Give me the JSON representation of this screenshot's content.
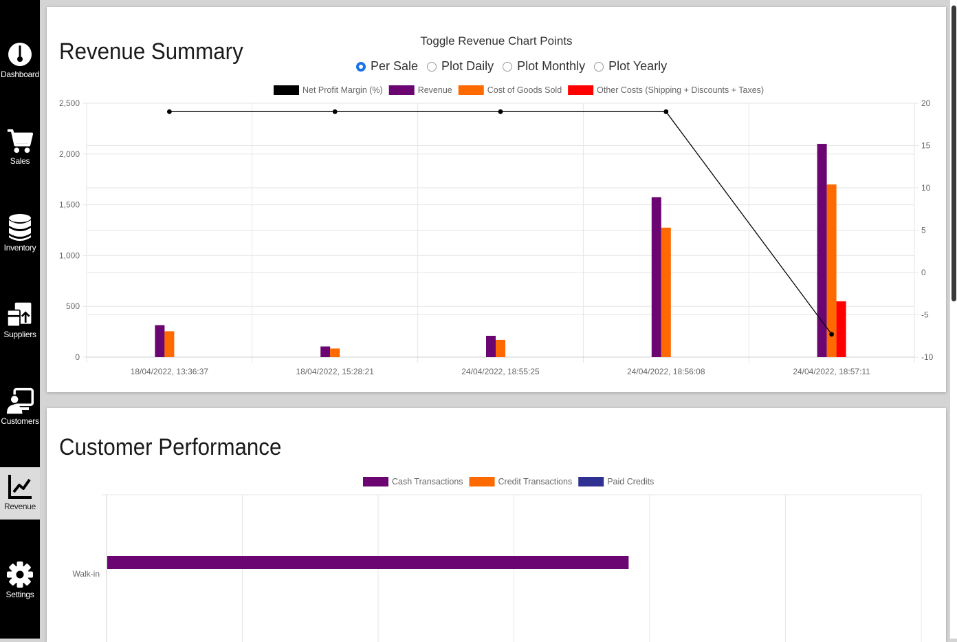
{
  "nav": [
    {
      "label": "Dashboard",
      "icon": "thermometer-icon",
      "active": false
    },
    {
      "label": "Sales",
      "icon": "cart-icon",
      "active": false
    },
    {
      "label": "Inventory",
      "icon": "database-icon",
      "active": false
    },
    {
      "label": "Suppliers",
      "icon": "supplier-icon",
      "active": false
    },
    {
      "label": "Customers",
      "icon": "customer-icon",
      "active": false
    },
    {
      "label": "Revenue",
      "icon": "chart-line-icon",
      "active": true
    },
    {
      "label": "Settings",
      "icon": "gear-icon",
      "active": false
    }
  ],
  "revenue": {
    "title": "Revenue Summary",
    "toggle_title": "Toggle Revenue Chart Points",
    "options": [
      {
        "label": "Per Sale",
        "checked": true
      },
      {
        "label": "Plot Daily",
        "checked": false
      },
      {
        "label": "Plot Monthly",
        "checked": false
      },
      {
        "label": "Plot Yearly",
        "checked": false
      }
    ]
  },
  "customer": {
    "title": "Customer Performance"
  },
  "chart_data": [
    {
      "type": "bar",
      "categories": [
        "18/04/2022, 13:36:37",
        "18/04/2022, 15:28:21",
        "24/04/2022, 18:55:25",
        "24/04/2022, 18:56:08",
        "24/04/2022, 18:57:11"
      ],
      "series": [
        {
          "name": "Revenue",
          "color": "#6a0572",
          "values": [
            315,
            105,
            210,
            1575,
            2100
          ]
        },
        {
          "name": "Cost of Goods Sold",
          "color": "#ff6a00",
          "values": [
            255,
            85,
            170,
            1275,
            1700
          ]
        },
        {
          "name": "Other Costs (Shipping + Discounts + Taxes)",
          "color": "#ff0000",
          "values": [
            0,
            0,
            0,
            0,
            550
          ]
        }
      ],
      "line_series": {
        "name": "Net Profit Margin (%)",
        "color": "#000000",
        "axis": "right",
        "values": [
          19,
          19,
          19,
          19,
          -7.3
        ]
      },
      "y_left": {
        "min": 0,
        "max": 2500,
        "ticks": [
          "0",
          "500",
          "1,000",
          "1,500",
          "2,000",
          "2,500"
        ]
      },
      "y_right": {
        "min": -10,
        "max": 20,
        "ticks": [
          "-10",
          "-5",
          "0",
          "5",
          "10",
          "15",
          "20"
        ]
      },
      "legend": "top",
      "grid": true
    },
    {
      "type": "bar",
      "orientation": "horizontal",
      "categories": [
        "Walk-in"
      ],
      "series": [
        {
          "name": "Cash Transactions",
          "color": "#6a0572",
          "values": [
            1
          ]
        },
        {
          "name": "Credit Transactions",
          "color": "#ff6a00",
          "values": [
            0
          ]
        },
        {
          "name": "Paid Credits",
          "color": "#2e3192",
          "values": [
            0
          ]
        }
      ],
      "x_fraction_of_axis": 0.64,
      "legend": "top",
      "grid": true
    }
  ]
}
